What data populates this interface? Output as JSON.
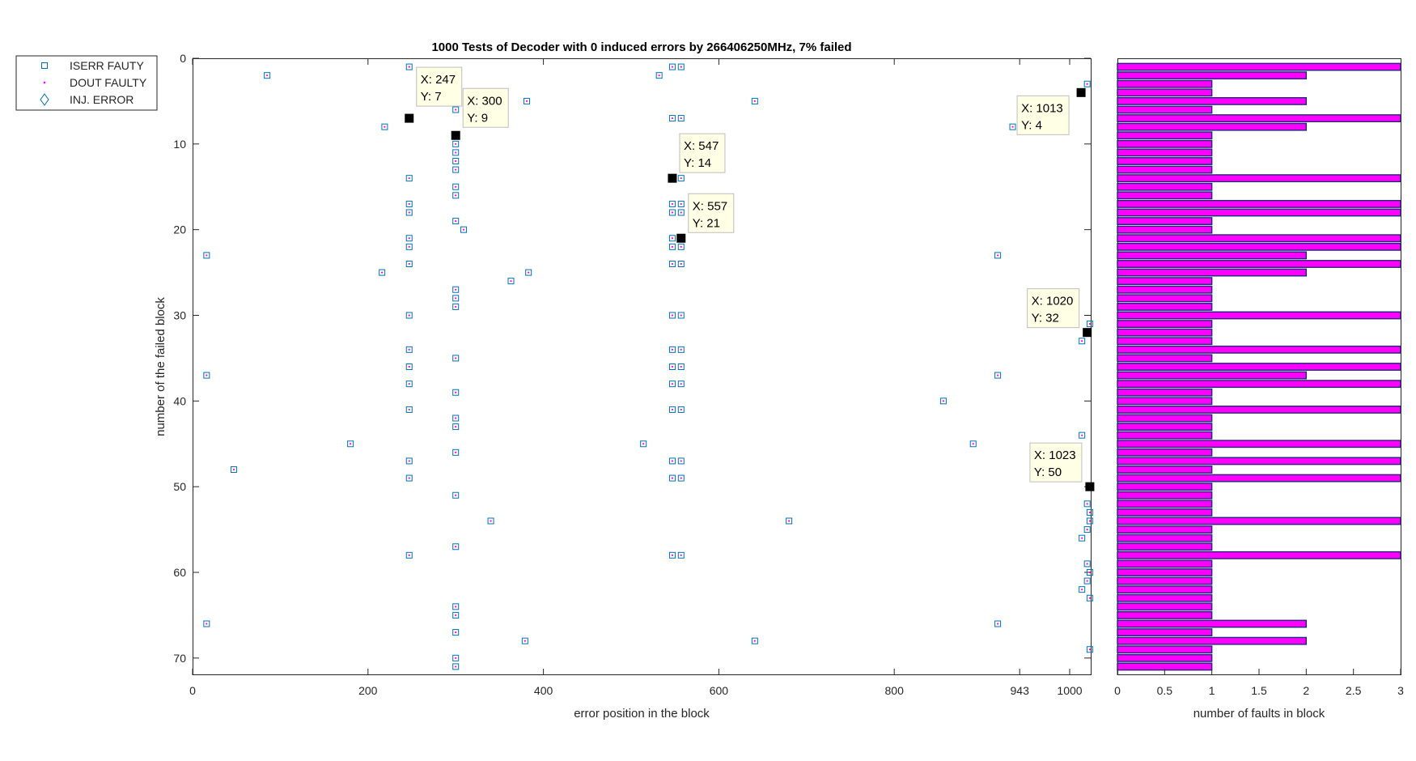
{
  "chart_data": [
    {
      "type": "scatter",
      "title": "1000 Tests of Decoder with 0 induced errors by 266406250MHz, 7% failed",
      "xlabel": "error position in the block",
      "ylabel": "number of the failed block",
      "xlim": [
        0,
        1024
      ],
      "ylim": [
        0,
        72
      ],
      "y_reversed": true,
      "xticks": [
        0,
        200,
        400,
        600,
        800,
        943,
        1000
      ],
      "xtick_labels": [
        "0",
        "200",
        "400",
        "600",
        "800",
        "943",
        "1000"
      ],
      "yticks": [
        0,
        10,
        20,
        30,
        40,
        50,
        60,
        70
      ],
      "ytick_labels": [
        "0",
        "10",
        "20",
        "30",
        "40",
        "50",
        "60",
        "70"
      ],
      "legend": {
        "placement": "left of axes, top",
        "entries": [
          {
            "label": "ISERR FAUTY",
            "marker": "square",
            "color": "#0072BD"
          },
          {
            "label": "DOUT FAULTY",
            "marker": "dot",
            "color": "#FF00FF"
          },
          {
            "label": "INJ. ERROR",
            "marker": "diamond",
            "color": "#0072BD"
          }
        ]
      },
      "series": [
        {
          "name": "ISERR FAUTY",
          "points": [
            [
              85,
              2
            ],
            [
              247,
              1
            ],
            [
              547,
              1
            ],
            [
              557,
              1
            ],
            [
              532,
              2
            ],
            [
              1020,
              3
            ],
            [
              300,
              6
            ],
            [
              381,
              5
            ],
            [
              641,
              5
            ],
            [
              219,
              8
            ],
            [
              547,
              7
            ],
            [
              557,
              7
            ],
            [
              935,
              8
            ],
            [
              300,
              10
            ],
            [
              300,
              11
            ],
            [
              300,
              12
            ],
            [
              300,
              13
            ],
            [
              247,
              14
            ],
            [
              557,
              14
            ],
            [
              300,
              15
            ],
            [
              300,
              16
            ],
            [
              247,
              17
            ],
            [
              247,
              18
            ],
            [
              547,
              17
            ],
            [
              557,
              17
            ],
            [
              547,
              18
            ],
            [
              557,
              18
            ],
            [
              300,
              19
            ],
            [
              309,
              20
            ],
            [
              247,
              21
            ],
            [
              247,
              22
            ],
            [
              547,
              21
            ],
            [
              547,
              22
            ],
            [
              557,
              22
            ],
            [
              16,
              23
            ],
            [
              918,
              23
            ],
            [
              247,
              24
            ],
            [
              547,
              24
            ],
            [
              557,
              24
            ],
            [
              216,
              25
            ],
            [
              383,
              25
            ],
            [
              363,
              26
            ],
            [
              300,
              27
            ],
            [
              300,
              28
            ],
            [
              300,
              29
            ],
            [
              247,
              30
            ],
            [
              547,
              30
            ],
            [
              557,
              30
            ],
            [
              1023,
              31
            ],
            [
              1014,
              33
            ],
            [
              247,
              34
            ],
            [
              547,
              34
            ],
            [
              557,
              34
            ],
            [
              300,
              35
            ],
            [
              247,
              36
            ],
            [
              547,
              36
            ],
            [
              557,
              36
            ],
            [
              16,
              37
            ],
            [
              918,
              37
            ],
            [
              247,
              38
            ],
            [
              547,
              38
            ],
            [
              557,
              38
            ],
            [
              300,
              39
            ],
            [
              856,
              40
            ],
            [
              247,
              41
            ],
            [
              547,
              41
            ],
            [
              557,
              41
            ],
            [
              300,
              42
            ],
            [
              300,
              43
            ],
            [
              1014,
              44
            ],
            [
              180,
              45
            ],
            [
              514,
              45
            ],
            [
              890,
              45
            ],
            [
              300,
              46
            ],
            [
              247,
              47
            ],
            [
              547,
              47
            ],
            [
              557,
              47
            ],
            [
              47,
              48
            ],
            [
              247,
              49
            ],
            [
              547,
              49
            ],
            [
              557,
              49
            ],
            [
              300,
              51
            ],
            [
              1020,
              52
            ],
            [
              1023,
              53
            ],
            [
              340,
              54
            ],
            [
              680,
              54
            ],
            [
              1023,
              54
            ],
            [
              1020,
              55
            ],
            [
              1014,
              56
            ],
            [
              300,
              57
            ],
            [
              247,
              58
            ],
            [
              547,
              58
            ],
            [
              557,
              58
            ],
            [
              1020,
              59
            ],
            [
              1023,
              60
            ],
            [
              1020,
              61
            ],
            [
              1014,
              62
            ],
            [
              1023,
              63
            ],
            [
              300,
              64
            ],
            [
              300,
              65
            ],
            [
              16,
              66
            ],
            [
              918,
              66
            ],
            [
              300,
              67
            ],
            [
              379,
              68
            ],
            [
              641,
              68
            ],
            [
              1023,
              69
            ],
            [
              300,
              70
            ],
            [
              300,
              71
            ]
          ]
        },
        {
          "name": "DOUT FAULTY",
          "points": [
            [
              85,
              2
            ],
            [
              247,
              1
            ],
            [
              547,
              1
            ],
            [
              557,
              1
            ],
            [
              532,
              2
            ],
            [
              1020,
              3
            ],
            [
              300,
              6
            ],
            [
              381,
              5
            ],
            [
              641,
              5
            ],
            [
              219,
              8
            ],
            [
              547,
              7
            ],
            [
              557,
              7
            ],
            [
              935,
              8
            ],
            [
              300,
              10
            ],
            [
              300,
              11
            ],
            [
              300,
              12
            ],
            [
              300,
              13
            ],
            [
              247,
              14
            ],
            [
              557,
              14
            ],
            [
              300,
              15
            ],
            [
              300,
              16
            ],
            [
              247,
              17
            ],
            [
              247,
              18
            ],
            [
              547,
              17
            ],
            [
              557,
              17
            ],
            [
              547,
              18
            ],
            [
              557,
              18
            ],
            [
              300,
              19
            ],
            [
              309,
              20
            ],
            [
              247,
              21
            ],
            [
              247,
              22
            ],
            [
              547,
              21
            ],
            [
              547,
              22
            ],
            [
              557,
              22
            ],
            [
              16,
              23
            ],
            [
              918,
              23
            ],
            [
              247,
              24
            ],
            [
              547,
              24
            ],
            [
              557,
              24
            ],
            [
              216,
              25
            ],
            [
              383,
              25
            ],
            [
              363,
              26
            ],
            [
              300,
              27
            ],
            [
              300,
              28
            ],
            [
              300,
              29
            ],
            [
              247,
              30
            ],
            [
              547,
              30
            ],
            [
              557,
              30
            ],
            [
              1023,
              31
            ],
            [
              1014,
              33
            ],
            [
              247,
              34
            ],
            [
              547,
              34
            ],
            [
              557,
              34
            ],
            [
              300,
              35
            ],
            [
              247,
              36
            ],
            [
              547,
              36
            ],
            [
              557,
              36
            ],
            [
              16,
              37
            ],
            [
              918,
              37
            ],
            [
              247,
              38
            ],
            [
              547,
              38
            ],
            [
              557,
              38
            ],
            [
              300,
              39
            ],
            [
              856,
              40
            ],
            [
              247,
              41
            ],
            [
              547,
              41
            ],
            [
              557,
              41
            ],
            [
              300,
              42
            ],
            [
              300,
              43
            ],
            [
              1014,
              44
            ],
            [
              180,
              45
            ],
            [
              514,
              45
            ],
            [
              890,
              45
            ],
            [
              300,
              46
            ],
            [
              247,
              47
            ],
            [
              547,
              47
            ],
            [
              557,
              47
            ],
            [
              47,
              48
            ],
            [
              247,
              49
            ],
            [
              547,
              49
            ],
            [
              557,
              49
            ],
            [
              300,
              51
            ],
            [
              1020,
              52
            ],
            [
              1023,
              53
            ],
            [
              340,
              54
            ],
            [
              680,
              54
            ],
            [
              1023,
              54
            ],
            [
              1020,
              55
            ],
            [
              1014,
              56
            ],
            [
              300,
              57
            ],
            [
              247,
              58
            ],
            [
              547,
              58
            ],
            [
              557,
              58
            ],
            [
              1020,
              59
            ],
            [
              1023,
              60
            ],
            [
              1020,
              61
            ],
            [
              1014,
              62
            ],
            [
              1023,
              63
            ],
            [
              300,
              64
            ],
            [
              300,
              65
            ],
            [
              16,
              66
            ],
            [
              918,
              66
            ],
            [
              300,
              67
            ],
            [
              379,
              68
            ],
            [
              641,
              68
            ],
            [
              1023,
              69
            ],
            [
              300,
              70
            ],
            [
              300,
              71
            ]
          ]
        }
      ],
      "highlighted_points": [
        [
          247,
          7
        ],
        [
          300,
          9
        ],
        [
          547,
          14
        ],
        [
          557,
          21
        ],
        [
          1013,
          4
        ],
        [
          1020,
          32
        ],
        [
          1023,
          50
        ]
      ],
      "datatips": [
        {
          "x": 247,
          "y": 7,
          "line1": "X: 247",
          "line2": "Y: 7"
        },
        {
          "x": 300,
          "y": 9,
          "line1": "X: 300",
          "line2": "Y: 9"
        },
        {
          "x": 547,
          "y": 14,
          "line1": "X: 547",
          "line2": "Y: 14"
        },
        {
          "x": 557,
          "y": 21,
          "line1": "X: 557",
          "line2": "Y: 21"
        },
        {
          "x": 1013,
          "y": 4,
          "line1": "X: 1013",
          "line2": "Y: 4"
        },
        {
          "x": 1020,
          "y": 32,
          "line1": "X: 1020",
          "line2": "Y: 32"
        },
        {
          "x": 1023,
          "y": 50,
          "line1": "X: 1023",
          "line2": "Y: 50"
        }
      ]
    },
    {
      "type": "bar",
      "orientation": "horizontal",
      "xlabel": "number of faults in block",
      "xlim": [
        0,
        3
      ],
      "ylim": [
        0,
        72
      ],
      "y_reversed": true,
      "xticks": [
        0,
        0.5,
        1,
        1.5,
        2,
        2.5,
        3
      ],
      "xtick_labels": [
        "0",
        "0.5",
        "1",
        "1.5",
        "2",
        "2.5",
        "3"
      ],
      "bar_color": "#FF00FF",
      "edge_color": "#1F2A7A",
      "categories": [
        1,
        2,
        3,
        4,
        5,
        6,
        7,
        8,
        9,
        10,
        11,
        12,
        13,
        14,
        15,
        16,
        17,
        18,
        19,
        20,
        21,
        22,
        23,
        24,
        25,
        26,
        27,
        28,
        29,
        30,
        31,
        32,
        33,
        34,
        35,
        36,
        37,
        38,
        39,
        40,
        41,
        42,
        43,
        44,
        45,
        46,
        47,
        48,
        49,
        50,
        51,
        52,
        53,
        54,
        55,
        56,
        57,
        58,
        59,
        60,
        61,
        62,
        63,
        64,
        65,
        66,
        67,
        68,
        69,
        70,
        71
      ],
      "values": [
        3,
        2,
        1,
        1,
        2,
        1,
        3,
        2,
        1,
        1,
        1,
        1,
        1,
        3,
        1,
        1,
        3,
        3,
        1,
        1,
        3,
        3,
        2,
        3,
        2,
        1,
        1,
        1,
        1,
        3,
        1,
        1,
        1,
        3,
        1,
        3,
        2,
        3,
        1,
        1,
        3,
        1,
        1,
        1,
        3,
        1,
        3,
        1,
        3,
        1,
        1,
        1,
        1,
        3,
        1,
        1,
        1,
        3,
        1,
        1,
        1,
        1,
        1,
        1,
        1,
        2,
        1,
        2,
        1,
        1,
        1
      ]
    }
  ]
}
